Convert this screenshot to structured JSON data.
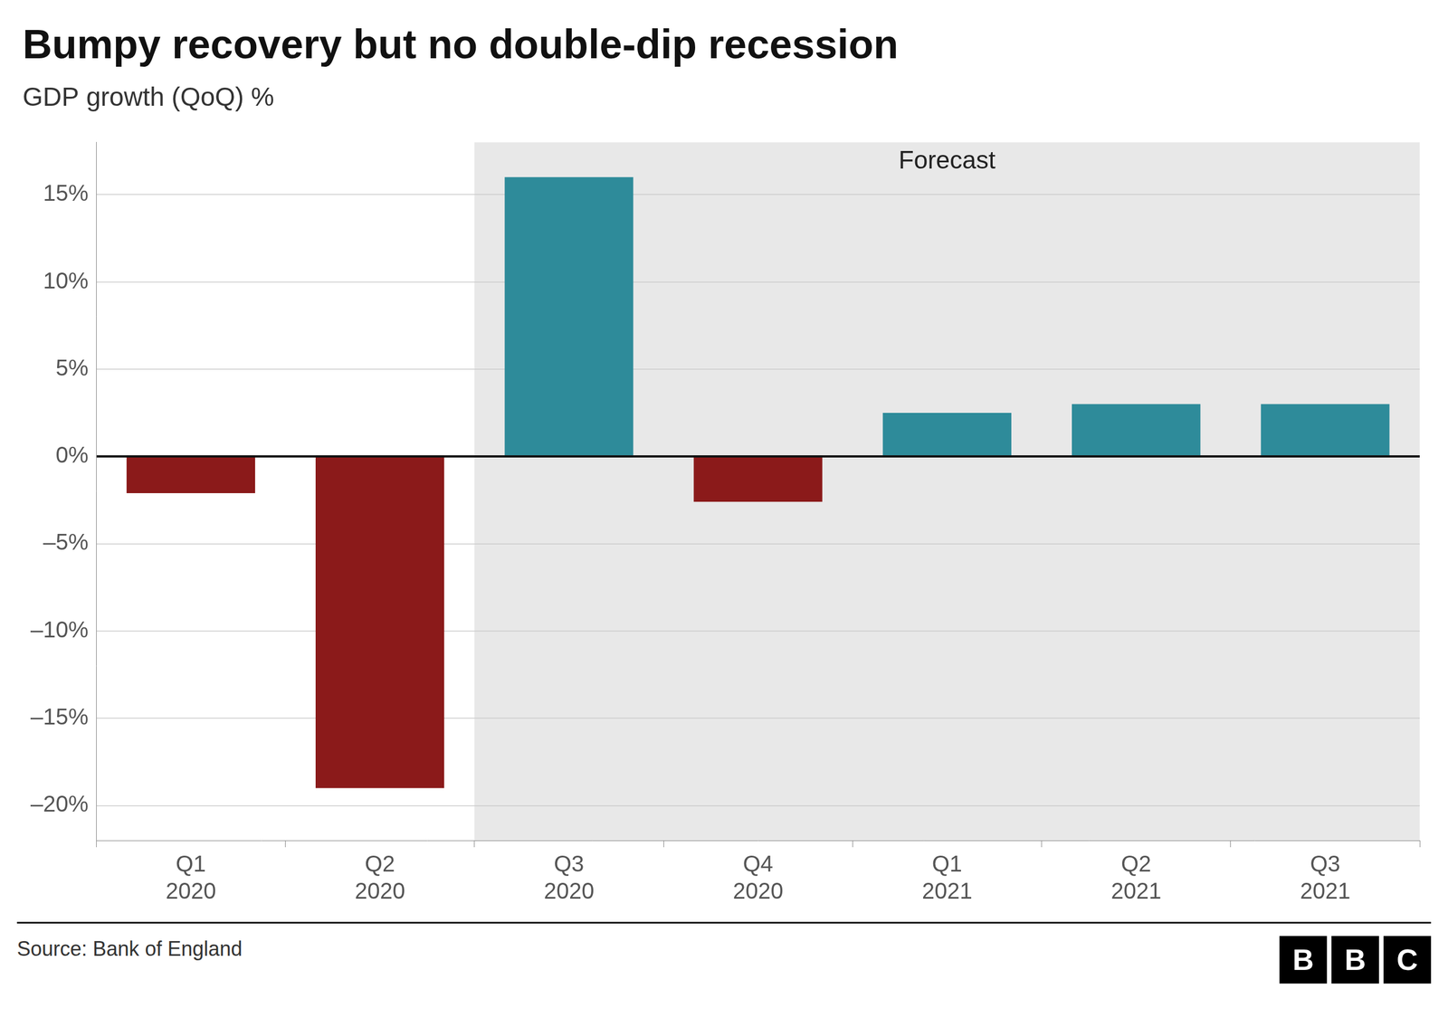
{
  "chart_data": {
    "type": "bar",
    "title": "Bumpy recovery but no double-dip recession",
    "subtitle": "GDP growth (QoQ) %",
    "categories": [
      "Q1\n2020",
      "Q2\n2020",
      "Q3\n2020",
      "Q4\n2020",
      "Q1\n2021",
      "Q2\n2021",
      "Q3\n2021"
    ],
    "values": [
      -2.1,
      -19.0,
      16.0,
      -2.6,
      2.5,
      3.0,
      3.0
    ],
    "colors": [
      "#8B1A1A",
      "#8B1A1A",
      "#2E8B9A",
      "#8B1A1A",
      "#2E8B9A",
      "#2E8B9A",
      "#2E8B9A"
    ],
    "ylim": [
      -22,
      18
    ],
    "yticks": [
      {
        "value": -20,
        "label": "–20%"
      },
      {
        "value": -15,
        "label": "–15%"
      },
      {
        "value": -10,
        "label": "–10%"
      },
      {
        "value": -5,
        "label": "–5%"
      },
      {
        "value": 0,
        "label": "0%"
      },
      {
        "value": 5,
        "label": "5%"
      },
      {
        "value": 10,
        "label": "10%"
      },
      {
        "value": 15,
        "label": "15%"
      }
    ],
    "grid": true,
    "annotations": [
      {
        "text": "Forecast",
        "from": "Q3\n2020"
      }
    ],
    "source": "Source: Bank of England",
    "logo": "BBC"
  }
}
